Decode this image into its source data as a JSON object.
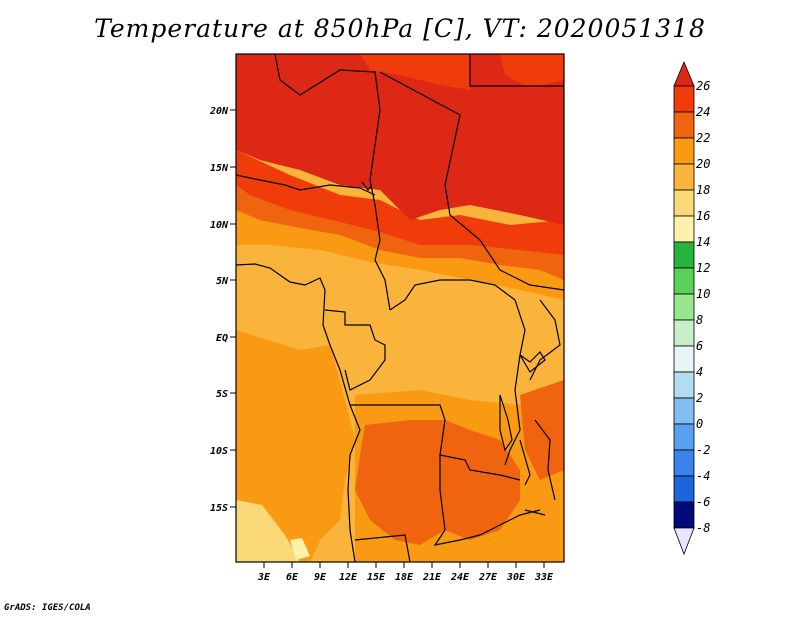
{
  "title": "Temperature at 850hPa [C], VT: 2020051318",
  "credit": "GrADS: IGES/COLA",
  "map": {
    "lat_ticks": [
      "20N",
      "15N",
      "10N",
      "5N",
      "EQ",
      "5S",
      "10S",
      "15S"
    ],
    "lon_ticks": [
      "3E",
      "6E",
      "9E",
      "12E",
      "15E",
      "18E",
      "21E",
      "24E",
      "27E",
      "30E",
      "33E"
    ]
  },
  "colorbar": {
    "labels": [
      "26",
      "24",
      "22",
      "20",
      "18",
      "16",
      "14",
      "12",
      "10",
      "8",
      "6",
      "4",
      "2",
      "0",
      "-2",
      "-4",
      "-6",
      "-8"
    ],
    "colors": {
      "above_26": "#dc2814",
      "24_26": "#f03c0a",
      "22_24": "#f06410",
      "20_22": "#fa9a12",
      "18_20": "#fab43c",
      "16_18": "#fad878",
      "14_16": "#fff0aa",
      "12_14": "#28b43c",
      "10_12": "#5ad25a",
      "8_10": "#96e68c",
      "6_8": "#c8f0c8",
      "4_6": "#e6f5f8",
      "2_4": "#b4dcf0",
      "0_2": "#82bef0",
      "n2_0": "#5aa0f0",
      "n4_n2": "#3c82eb",
      "n6_n4": "#1e64dc",
      "n8_n6": "#0a46c8",
      "below_n8": "#000a78",
      "below_tri": "#e6e6ff"
    }
  }
}
